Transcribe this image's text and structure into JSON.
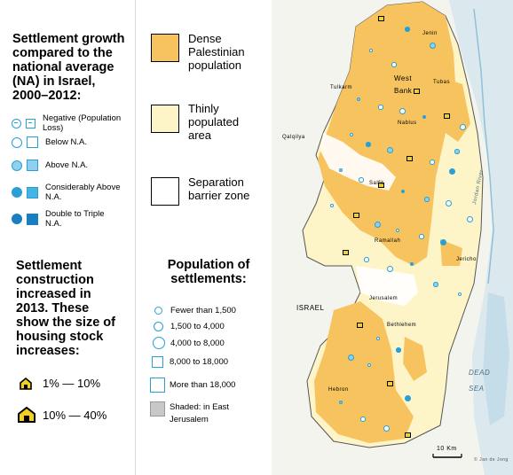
{
  "growth_legend": {
    "title": "Settlement growth compared to the national average (NA) in Israel, 2000–2012:",
    "items": [
      {
        "label": "Negative (Population Loss)"
      },
      {
        "label": "Below N.A."
      },
      {
        "label": "Above N.A."
      },
      {
        "label": "Considerably Above N.A."
      },
      {
        "label": "Double to Triple N.A."
      }
    ]
  },
  "construction_legend": {
    "title": "Settlement construction increased in 2013. These show the size of housing stock increases:",
    "items": [
      {
        "label": "1% — 10%"
      },
      {
        "label": "10% — 40%"
      }
    ]
  },
  "area_legend": {
    "items": [
      {
        "label": "Dense Palestinian population",
        "color": "#f7c35f"
      },
      {
        "label": "Thinly populated area",
        "color": "#fdf5c8"
      },
      {
        "label": "Separation barrier zone",
        "color": "#ffffff"
      }
    ]
  },
  "population_legend": {
    "title": "Population of settlements:",
    "items": [
      {
        "label": "Fewer than 1,500"
      },
      {
        "label": "1,500 to 4,000"
      },
      {
        "label": "4,000 to 8,000"
      },
      {
        "label": "8,000 to 18,000"
      },
      {
        "label": "More than 18,000"
      },
      {
        "label": "Shaded: in East Jerusalem"
      }
    ]
  },
  "map": {
    "labels": {
      "west_bank": "West Bank",
      "israel": "ISRAEL",
      "dead_sea": "DEAD SEA",
      "jordan_river": "Jordan River",
      "jenin": "Jenin",
      "tulkarm": "Tulkarm",
      "tubas": "Tubas",
      "qalqilya": "Qalqilya",
      "nablus": "Nablus",
      "salfit": "Salfit",
      "ramallah": "Ramallah",
      "jericho": "Jericho",
      "jerusalem": "Jerusalem",
      "bethlehem": "Bethlehem",
      "hebron": "Hebron"
    },
    "scale": "10 Km",
    "credit": "© Jan de Jong"
  },
  "colors": {
    "dense": "#f7c35f",
    "thin": "#fdf5c8",
    "water": "#dbe9ee",
    "settlement": "#2a9fd6",
    "hut_fill": "#f2d21e"
  }
}
